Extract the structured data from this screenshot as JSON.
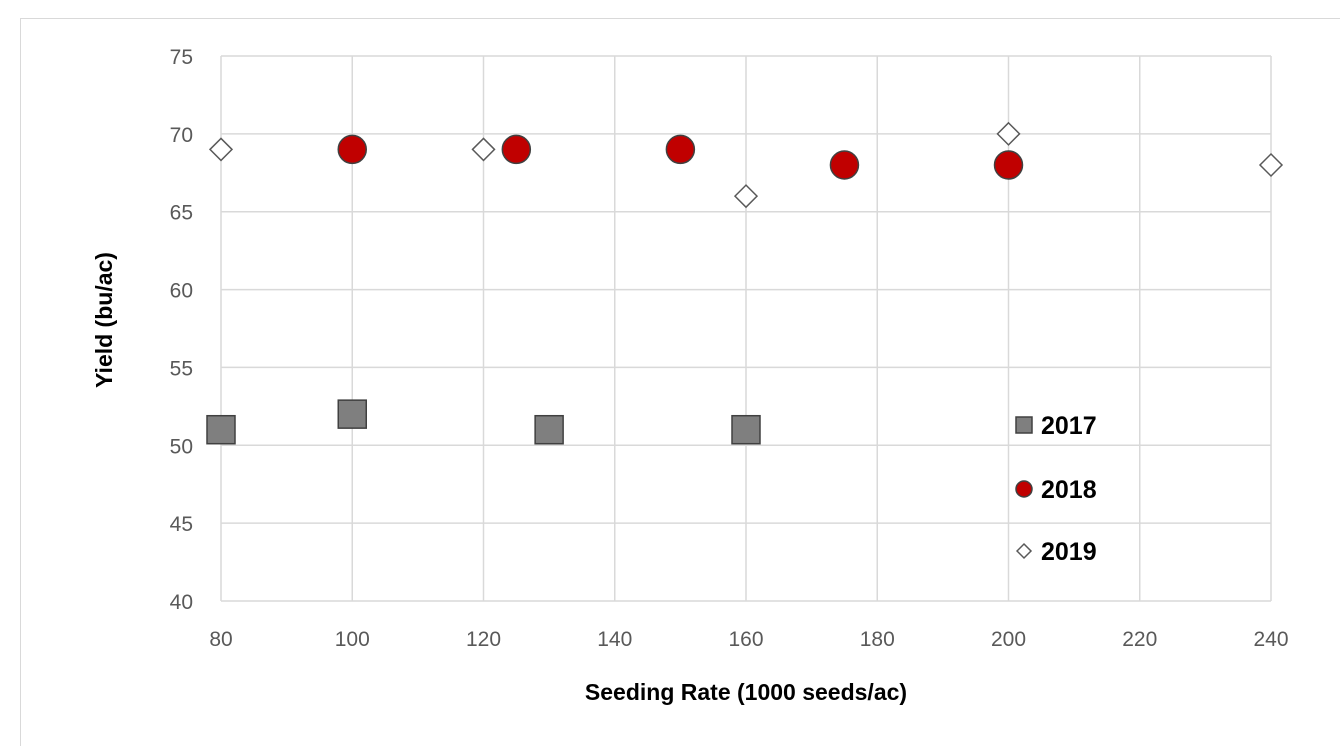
{
  "chart_data": {
    "type": "scatter",
    "title": "",
    "xlabel": "Seeding Rate (1000 seeds/ac)",
    "ylabel": "Yield (bu/ac)",
    "xlim": [
      80,
      240
    ],
    "ylim": [
      40,
      75
    ],
    "xticks": [
      80,
      100,
      120,
      140,
      160,
      180,
      200,
      220,
      240
    ],
    "yticks": [
      40,
      45,
      50,
      55,
      60,
      65,
      70,
      75
    ],
    "grid": true,
    "legend_position": "right",
    "series": [
      {
        "name": "2017",
        "marker": "square",
        "color": "#7f7f7f",
        "points": [
          [
            80,
            51
          ],
          [
            100,
            52
          ],
          [
            130,
            51
          ],
          [
            160,
            51
          ]
        ]
      },
      {
        "name": "2018",
        "marker": "circle",
        "color": "#c00000",
        "points": [
          [
            100,
            69
          ],
          [
            125,
            69
          ],
          [
            150,
            69
          ],
          [
            175,
            68
          ],
          [
            200,
            68
          ]
        ]
      },
      {
        "name": "2019",
        "marker": "diamond",
        "color": "#ffffff",
        "points": [
          [
            80,
            69
          ],
          [
            120,
            69
          ],
          [
            160,
            66
          ],
          [
            200,
            70
          ],
          [
            240,
            68
          ]
        ]
      }
    ]
  }
}
